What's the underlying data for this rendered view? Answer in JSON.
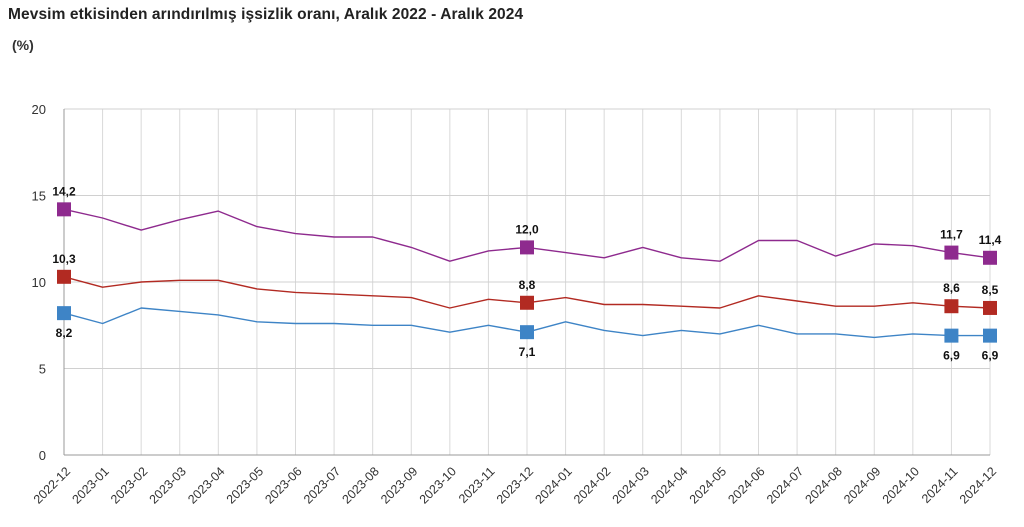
{
  "header": {
    "title": "Mevsim etkisinden arındırılmış işsizlik oranı, Aralık 2022 - Aralık 2024",
    "unit": "(%)"
  },
  "chart_data": {
    "type": "line",
    "title": "Mevsim etkisinden arındırılmış işsizlik oranı, Aralık 2022 - Aralık 2024",
    "ylabel": "(%)",
    "xlabel": "",
    "ylim": [
      0,
      20
    ],
    "yticks": [
      "0",
      "5",
      "10",
      "15",
      "20"
    ],
    "grid": true,
    "categories": [
      "2022-12",
      "2023-01",
      "2023-02",
      "2023-03",
      "2023-04",
      "2023-05",
      "2023-06",
      "2023-07",
      "2023-08",
      "2023-09",
      "2023-10",
      "2023-11",
      "2023-12",
      "2024-01",
      "2024-02",
      "2024-03",
      "2024-04",
      "2024-05",
      "2024-06",
      "2024-07",
      "2024-08",
      "2024-09",
      "2024-10",
      "2024-11",
      "2024-12"
    ],
    "series": [
      {
        "color": "#8e2a8e",
        "values": [
          14.2,
          13.7,
          13.0,
          13.6,
          14.1,
          13.2,
          12.8,
          12.6,
          12.6,
          12.0,
          11.2,
          11.8,
          12.0,
          11.7,
          11.4,
          12.0,
          11.4,
          11.2,
          12.4,
          12.4,
          11.5,
          12.2,
          12.1,
          11.7,
          11.4
        ],
        "labels": [
          {
            "i": 0,
            "text": "14,2"
          },
          {
            "i": 12,
            "text": "12,0"
          },
          {
            "i": 23,
            "text": "11,7"
          },
          {
            "i": 24,
            "text": "11,4"
          }
        ]
      },
      {
        "color": "#b22a22",
        "values": [
          10.3,
          9.7,
          10.0,
          10.1,
          10.1,
          9.6,
          9.4,
          9.3,
          9.2,
          9.1,
          8.5,
          9.0,
          8.8,
          9.1,
          8.7,
          8.7,
          8.6,
          8.5,
          9.2,
          8.9,
          8.6,
          8.6,
          8.8,
          8.6,
          8.5
        ],
        "labels": [
          {
            "i": 0,
            "text": "10,3"
          },
          {
            "i": 12,
            "text": "8,8"
          },
          {
            "i": 23,
            "text": "8,6"
          },
          {
            "i": 24,
            "text": "8,5"
          }
        ]
      },
      {
        "color": "#3e84c6",
        "values": [
          8.2,
          7.6,
          8.5,
          8.3,
          8.1,
          7.7,
          7.6,
          7.6,
          7.5,
          7.5,
          7.1,
          7.5,
          7.1,
          7.7,
          7.2,
          6.9,
          7.2,
          7.0,
          7.5,
          7.0,
          7.0,
          6.8,
          7.0,
          6.9,
          6.9
        ],
        "labels": [
          {
            "i": 0,
            "text": "8,2"
          },
          {
            "i": 12,
            "text": "7,1"
          },
          {
            "i": 23,
            "text": "6,9"
          },
          {
            "i": 24,
            "text": "6,9"
          }
        ]
      }
    ]
  }
}
